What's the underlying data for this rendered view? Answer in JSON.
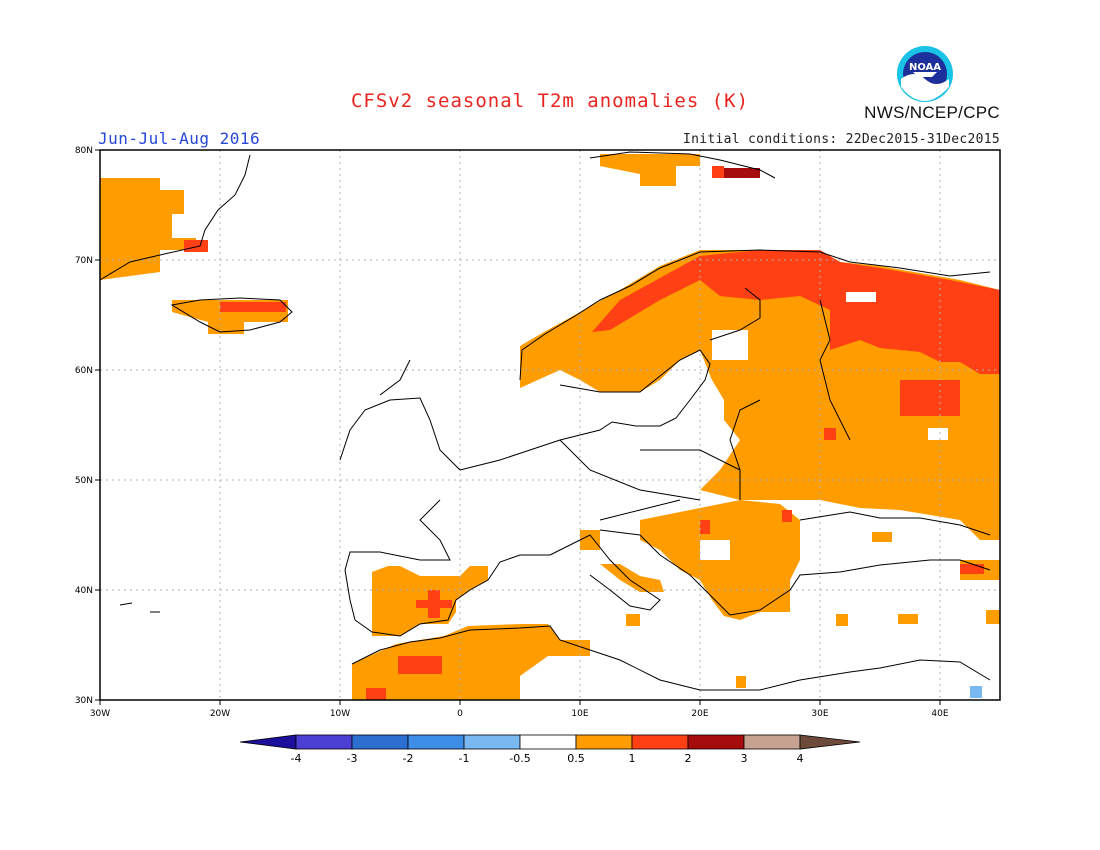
{
  "header": {
    "title": "CFSv2 seasonal T2m anomalies (K)",
    "period": "Jun-Jul-Aug 2016",
    "initial_conditions": "Initial conditions: 22Dec2015-31Dec2015",
    "agency": "NWS/NCEP/CPC",
    "logo_text": "NOAA"
  },
  "map": {
    "lon_range": [
      -30,
      45
    ],
    "lat_range": [
      30,
      80
    ],
    "lon_ticks": [
      "30W",
      "20W",
      "10W",
      "0",
      "10E",
      "20E",
      "30E",
      "40E"
    ],
    "lat_ticks": [
      "30N",
      "40N",
      "50N",
      "60N",
      "70N",
      "80N"
    ],
    "grid": "dotted"
  },
  "colorbar": {
    "tick_labels": [
      "-4",
      "-3",
      "-2",
      "-1",
      "-0.5",
      "0.5",
      "1",
      "2",
      "3",
      "4"
    ],
    "colors": [
      "#1b0f9c",
      "#4b3fd4",
      "#2d6fd1",
      "#3d8ee6",
      "#7ab8f2",
      "#ffffff",
      "#ff9c00",
      "#ff3f14",
      "#a60c0c",
      "#c8a290",
      "#6e4a3a"
    ]
  }
}
